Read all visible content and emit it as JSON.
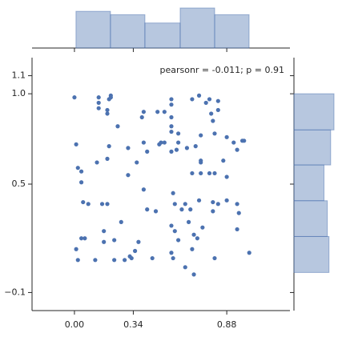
{
  "chart_data": {
    "type": "scatter",
    "annotation": "pearsonr = -0.011; p = 0.91",
    "x": [
      0.0,
      0.14,
      0.21,
      0.14,
      0.21,
      0.2,
      0.14,
      0.19,
      0.19,
      0.25,
      0.4,
      0.39,
      0.48,
      0.52,
      0.56,
      0.56,
      0.56,
      0.56,
      0.56,
      0.68,
      0.72,
      0.76,
      0.78,
      0.83,
      0.83,
      0.79,
      0.81,
      0.8,
      0.73,
      0.01,
      0.13,
      0.2,
      0.19,
      0.31,
      0.31,
      0.36,
      0.4,
      0.42,
      0.49,
      0.5,
      0.52,
      0.56,
      0.59,
      0.6,
      0.6,
      0.65,
      0.7,
      0.68,
      0.73,
      0.73,
      0.78,
      0.81,
      0.73,
      0.86,
      0.88,
      0.92,
      0.97,
      0.98,
      0.94,
      0.88,
      0.02,
      0.04,
      0.04,
      0.05,
      0.08,
      0.16,
      0.19,
      0.4,
      0.57,
      0.42,
      0.47,
      0.58,
      0.62,
      0.64,
      0.67,
      0.72,
      0.8,
      0.8,
      0.83,
      0.88,
      0.94,
      0.95,
      0.94,
      0.27,
      0.17,
      0.56,
      0.58,
      0.69,
      0.71,
      0.66,
      0.74,
      0.01,
      0.04,
      0.06,
      0.17,
      0.23,
      0.37,
      0.29,
      0.32,
      0.35,
      0.33,
      0.45,
      0.56,
      0.57,
      0.6,
      0.68,
      0.64,
      0.69,
      0.81,
      1.01,
      0.02,
      0.12,
      0.23
    ],
    "values": [
      0.98,
      0.98,
      0.98,
      0.95,
      0.99,
      0.97,
      0.92,
      0.91,
      0.89,
      0.82,
      0.9,
      0.87,
      0.9,
      0.9,
      0.97,
      0.94,
      0.87,
      0.82,
      0.79,
      0.97,
      0.99,
      0.95,
      0.97,
      0.96,
      0.91,
      0.89,
      0.78,
      0.85,
      0.77,
      0.72,
      0.62,
      0.71,
      0.64,
      0.55,
      0.7,
      0.62,
      0.73,
      0.68,
      0.72,
      0.73,
      0.73,
      0.68,
      0.69,
      0.78,
      0.73,
      0.7,
      0.71,
      0.56,
      0.63,
      0.56,
      0.56,
      0.56,
      0.62,
      0.63,
      0.76,
      0.73,
      0.74,
      0.74,
      0.69,
      0.54,
      0.59,
      0.57,
      0.51,
      0.4,
      0.39,
      0.39,
      0.39,
      0.47,
      0.45,
      0.36,
      0.35,
      0.39,
      0.36,
      0.39,
      0.36,
      0.41,
      0.4,
      0.35,
      0.39,
      0.41,
      0.39,
      0.34,
      0.25,
      0.29,
      0.24,
      0.27,
      0.24,
      0.22,
      0.2,
      0.29,
      0.26,
      0.14,
      0.2,
      0.2,
      0.18,
      0.19,
      0.18,
      0.08,
      0.1,
      0.13,
      0.09,
      0.09,
      0.12,
      0.09,
      0.19,
      0.14,
      0.04,
      0.0,
      0.09,
      0.12,
      0.08,
      0.08,
      0.08
    ],
    "color": "#4c72b0",
    "xlim": [
      -0.245,
      1.245
    ],
    "ylim": [
      -0.2,
      1.2
    ],
    "xticks": [
      {
        "value": 0,
        "label": "0.00"
      },
      0.34,
      0.88
    ],
    "yticks": [
      {
        "value": -0.1,
        "label": "−0.1"
      },
      0.5,
      {
        "value": 1,
        "label": "1.0"
      },
      1.1
    ],
    "marginal_x": {
      "bins": [
        0.009,
        0.208,
        0.407,
        0.611,
        0.81,
        1.009
      ],
      "counts": [
        22,
        20,
        15,
        24,
        20
      ]
    },
    "marginal_y": {
      "bins": [
        0.011,
        0.21,
        0.408,
        0.606,
        0.8,
        1.0
      ],
      "counts": [
        21,
        20,
        18,
        22,
        24
      ]
    }
  }
}
